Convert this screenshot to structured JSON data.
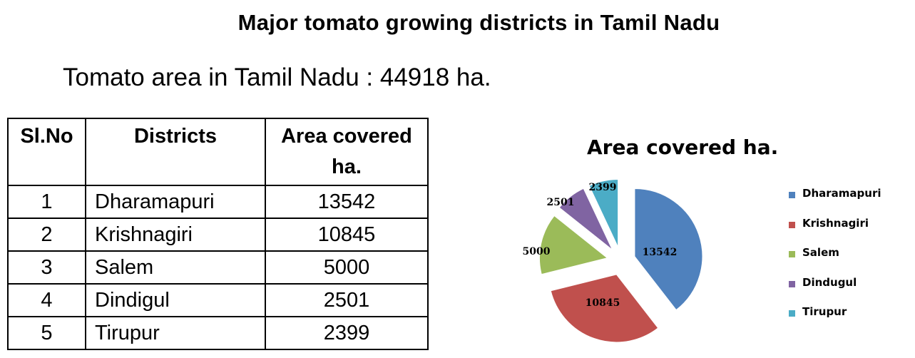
{
  "title": "Major tomato growing districts in Tamil Nadu",
  "subtitle": "Tomato area in Tamil Nadu : 44918 ha.",
  "table": {
    "headers": [
      "Sl.No",
      "Districts",
      "Area covered ha."
    ],
    "rows": [
      {
        "no": "1",
        "district": "Dharamapuri",
        "area": "13542"
      },
      {
        "no": "2",
        "district": "Krishnagiri",
        "area": "10845"
      },
      {
        "no": "3",
        "district": "Salem",
        "area": "5000"
      },
      {
        "no": "4",
        "district": "Dindigul",
        "area": "2501"
      },
      {
        "no": "5",
        "district": "Tirupur",
        "area": "2399"
      }
    ]
  },
  "chart_data": {
    "type": "pie",
    "title": "Area covered ha.",
    "categories": [
      "Dharamapuri",
      "Krishnagiri",
      "Salem",
      "Dindugul",
      "Tirupur"
    ],
    "values": [
      13542,
      10845,
      5000,
      2501,
      2399
    ],
    "colors": [
      "#4F81BD",
      "#C0504D",
      "#9BBB59",
      "#8064A2",
      "#4BACC6"
    ],
    "exploded": true,
    "data_labels": true,
    "legend": "right"
  }
}
